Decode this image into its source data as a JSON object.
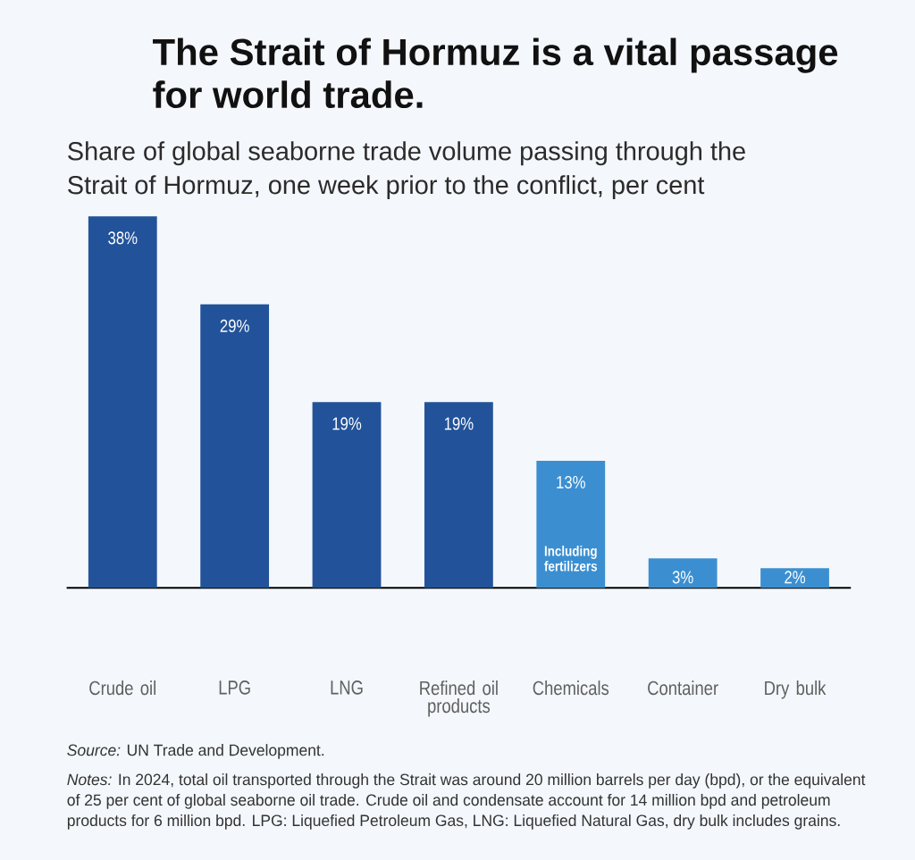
{
  "chart_data": {
    "type": "bar",
    "title": "The Strait of Hormuz is a vital passage for world trade.",
    "subtitle": "Share of global seaborne trade volume passing through the Strait of Hormuz, one week prior to the conflict, per cent",
    "categories": [
      "Crude oil",
      "LPG",
      "LNG",
      "Refined oil products",
      "Chemicals",
      "Container",
      "Dry bulk"
    ],
    "values": [
      38,
      29,
      19,
      19,
      13,
      3,
      2
    ],
    "colors": [
      "#22539a",
      "#22539a",
      "#22539a",
      "#22539a",
      "#3b8fd1",
      "#3b8fd1",
      "#3b8fd1"
    ],
    "value_labels": [
      "38%",
      "29%",
      "19%",
      "19%",
      "13%",
      "3%",
      "2%"
    ],
    "annotations": [
      "Including fertilizers",
      "*Source:* UN Trade and Development.",
      "*Notes:* In 2024, total oil transported through the Strait was around 20 million barrels per day (bpd), or the equivalent of 25 per cent of global seaborne oil trade. Crude oil and condensate account for 14 million bpd and petroleum products for 6 million bpd. LPG: Liquefied Petroleum Gas, LNG: Liquefied Natural Gas, dry bulk includes grains."
    ]
  }
}
